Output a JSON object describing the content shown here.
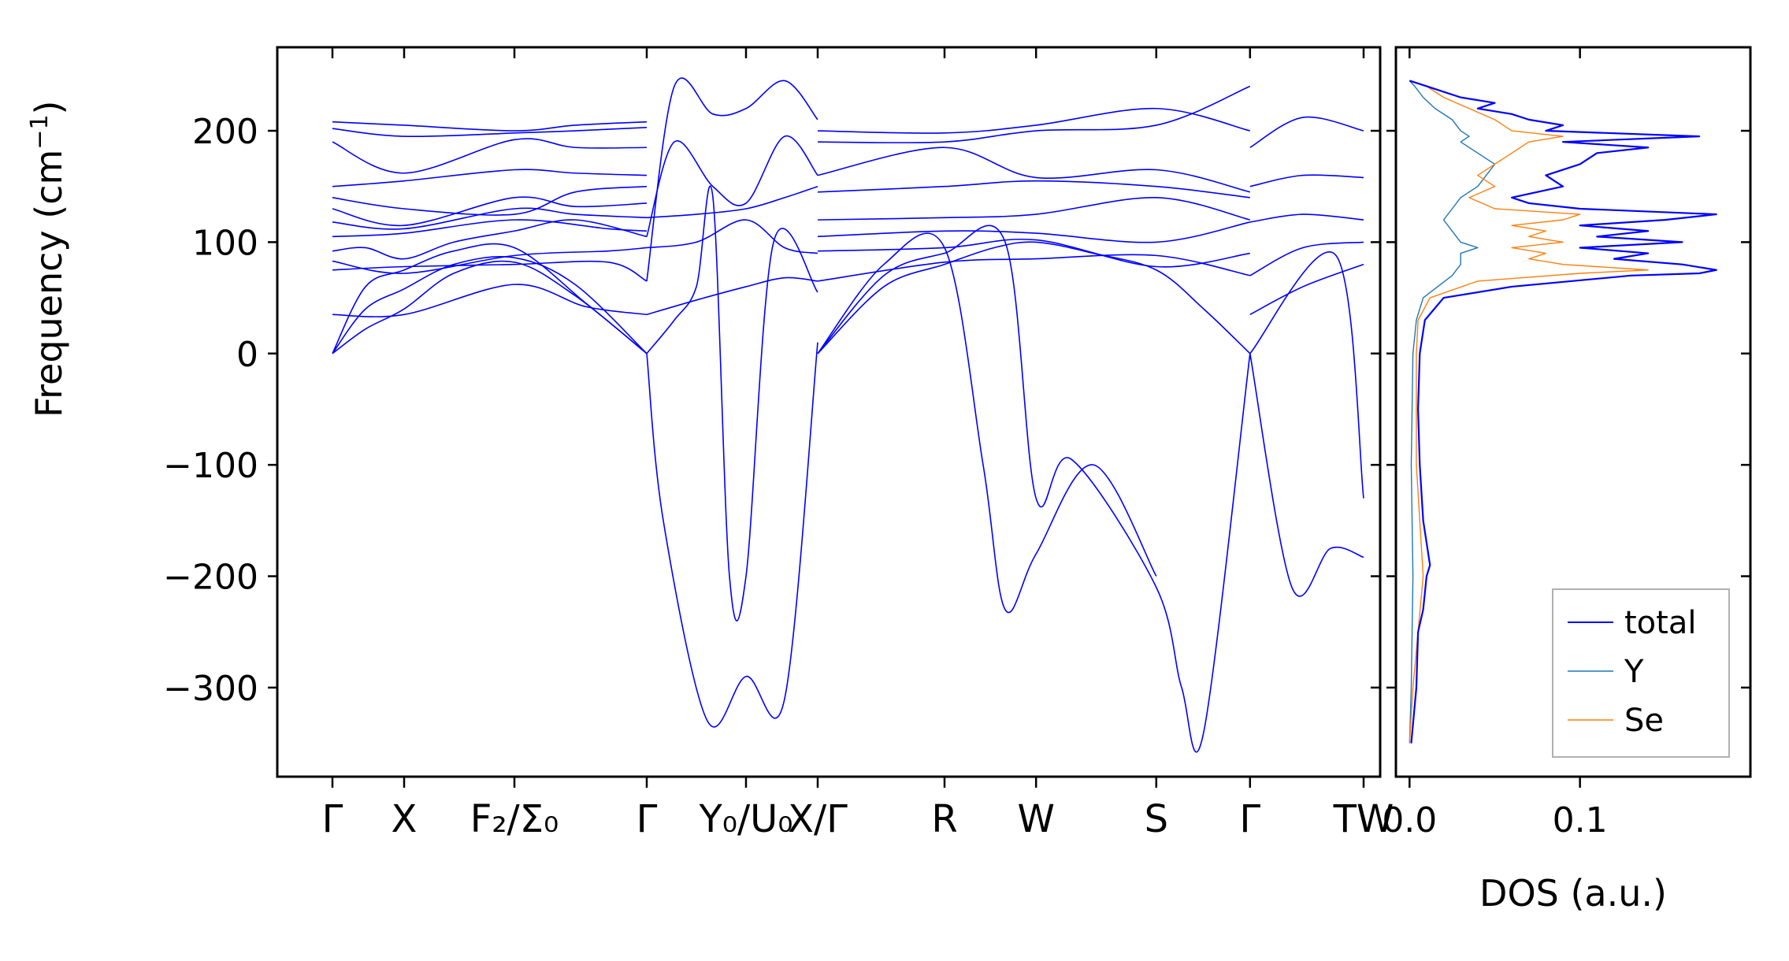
{
  "chart_data": [
    {
      "type": "line",
      "panel": "phonon-dispersion",
      "ylabel": "Frequency (cm$^{-1}$)",
      "ylabel_parts": {
        "main": "Frequency (cm",
        "sup": "−1",
        "close": ")"
      },
      "ylim": [
        -380,
        275
      ],
      "yticks": [
        -300,
        -200,
        -100,
        0,
        100,
        200
      ],
      "ytick_labels": [
        "−300",
        "−200",
        "−100",
        "0",
        "100",
        "200"
      ],
      "line_color": "#0000ff",
      "x_range": [
        0,
        1
      ],
      "high_symmetry_points": [
        {
          "x": 0.05,
          "label": "Γ"
        },
        {
          "x": 0.115,
          "label": "X"
        },
        {
          "x": 0.215,
          "label": "F₂/Σ₀"
        },
        {
          "x": 0.335,
          "label": "Γ"
        },
        {
          "x": 0.425,
          "label": "Y₀/U₀"
        },
        {
          "x": 0.49,
          "label": "X/Γ"
        },
        {
          "x": 0.605,
          "label": "R"
        },
        {
          "x": 0.688,
          "label": "W"
        },
        {
          "x": 0.797,
          "label": "S"
        },
        {
          "x": 0.882,
          "label": "Γ"
        },
        {
          "x": 0.985,
          "label": "TW"
        }
      ],
      "series": [
        {
          "x": [
            0.05,
            0.08,
            0.115,
            0.16,
            0.215,
            0.27,
            0.335
          ],
          "y": [
            0,
            22,
            40,
            72,
            82,
            52,
            0
          ]
        },
        {
          "x": [
            0.05,
            0.08,
            0.115,
            0.16,
            0.215,
            0.27,
            0.335
          ],
          "y": [
            0,
            40,
            58,
            80,
            86,
            62,
            0
          ]
        },
        {
          "x": [
            0.05,
            0.08,
            0.115,
            0.16,
            0.215,
            0.28,
            0.335
          ],
          "y": [
            0,
            60,
            75,
            92,
            95,
            45,
            0
          ]
        },
        {
          "x": [
            0.05,
            0.115,
            0.215,
            0.28,
            0.335
          ],
          "y": [
            35,
            35,
            62,
            42,
            35
          ]
        },
        {
          "x": [
            0.05,
            0.115,
            0.215,
            0.3,
            0.335
          ],
          "y": [
            75,
            78,
            80,
            82,
            65
          ]
        },
        {
          "x": [
            0.05,
            0.115,
            0.215,
            0.3,
            0.335
          ],
          "y": [
            83,
            72,
            88,
            92,
            95
          ]
        },
        {
          "x": [
            0.05,
            0.08,
            0.115,
            0.16,
            0.215,
            0.27,
            0.335
          ],
          "y": [
            92,
            95,
            85,
            100,
            110,
            120,
            105
          ]
        },
        {
          "x": [
            0.05,
            0.115,
            0.215,
            0.3,
            0.335
          ],
          "y": [
            105,
            108,
            120,
            112,
            110
          ]
        },
        {
          "x": [
            0.05,
            0.115,
            0.215,
            0.27,
            0.335
          ],
          "y": [
            118,
            112,
            130,
            125,
            122
          ]
        },
        {
          "x": [
            0.05,
            0.115,
            0.215,
            0.27,
            0.335
          ],
          "y": [
            130,
            115,
            140,
            132,
            135
          ]
        },
        {
          "x": [
            0.05,
            0.115,
            0.215,
            0.27,
            0.335
          ],
          "y": [
            140,
            130,
            125,
            145,
            150
          ]
        },
        {
          "x": [
            0.05,
            0.115,
            0.215,
            0.27,
            0.335
          ],
          "y": [
            150,
            155,
            165,
            162,
            160
          ]
        },
        {
          "x": [
            0.05,
            0.115,
            0.215,
            0.27,
            0.335
          ],
          "y": [
            190,
            162,
            192,
            185,
            185
          ]
        },
        {
          "x": [
            0.05,
            0.115,
            0.215,
            0.27,
            0.335
          ],
          "y": [
            202,
            195,
            198,
            200,
            203
          ]
        },
        {
          "x": [
            0.05,
            0.115,
            0.215,
            0.27,
            0.335
          ],
          "y": [
            208,
            205,
            200,
            205,
            208
          ]
        },
        {
          "x": [
            0.335,
            0.35,
            0.39,
            0.425,
            0.46,
            0.49
          ],
          "y": [
            0,
            -150,
            -330,
            -290,
            -310,
            10
          ]
        },
        {
          "x": [
            0.335,
            0.36,
            0.38,
            0.395,
            0.41,
            0.425,
            0.45,
            0.49
          ],
          "y": [
            0,
            30,
            60,
            140,
            -200,
            -200,
            100,
            55
          ]
        },
        {
          "x": [
            0.335,
            0.36,
            0.395,
            0.425,
            0.46,
            0.49
          ],
          "y": [
            65,
            240,
            215,
            220,
            245,
            210
          ]
        },
        {
          "x": [
            0.335,
            0.36,
            0.395,
            0.425,
            0.46,
            0.49
          ],
          "y": [
            105,
            190,
            150,
            135,
            195,
            160
          ]
        },
        {
          "x": [
            0.335,
            0.38,
            0.425,
            0.46,
            0.49
          ],
          "y": [
            35,
            48,
            60,
            68,
            65
          ]
        },
        {
          "x": [
            0.335,
            0.38,
            0.425,
            0.46,
            0.49
          ],
          "y": [
            95,
            100,
            120,
            95,
            90
          ]
        },
        {
          "x": [
            0.335,
            0.38,
            0.425,
            0.46,
            0.49
          ],
          "y": [
            122,
            125,
            130,
            140,
            150
          ]
        },
        {
          "x": [
            0.49,
            0.55,
            0.605,
            0.65,
            0.688,
            0.74,
            0.797,
            0.84,
            0.882
          ],
          "y": [
            0,
            60,
            80,
            95,
            100,
            90,
            75,
            40,
            0
          ]
        },
        {
          "x": [
            0.49,
            0.55,
            0.605,
            0.64,
            0.66,
            0.688,
            0.74,
            0.797
          ],
          "y": [
            0,
            80,
            95,
            -100,
            -230,
            -180,
            -100,
            -200
          ]
        },
        {
          "x": [
            0.49,
            0.55,
            0.605,
            0.66,
            0.688,
            0.72,
            0.797,
            0.82,
            0.84,
            0.882
          ],
          "y": [
            0,
            70,
            90,
            100,
            -130,
            -95,
            -210,
            -300,
            -340,
            0
          ]
        },
        {
          "x": [
            0.49,
            0.605,
            0.688,
            0.797,
            0.882
          ],
          "y": [
            65,
            82,
            85,
            88,
            70
          ]
        },
        {
          "x": [
            0.49,
            0.605,
            0.688,
            0.797,
            0.882
          ],
          "y": [
            92,
            95,
            102,
            78,
            90
          ]
        },
        {
          "x": [
            0.49,
            0.605,
            0.688,
            0.797,
            0.882
          ],
          "y": [
            105,
            110,
            108,
            100,
            118
          ]
        },
        {
          "x": [
            0.49,
            0.605,
            0.688,
            0.797,
            0.882
          ],
          "y": [
            120,
            122,
            125,
            140,
            120
          ]
        },
        {
          "x": [
            0.49,
            0.605,
            0.688,
            0.797,
            0.882
          ],
          "y": [
            145,
            150,
            155,
            150,
            140
          ]
        },
        {
          "x": [
            0.49,
            0.605,
            0.688,
            0.797,
            0.882
          ],
          "y": [
            160,
            185,
            158,
            165,
            145
          ]
        },
        {
          "x": [
            0.49,
            0.605,
            0.688,
            0.797,
            0.882
          ],
          "y": [
            190,
            190,
            200,
            205,
            240
          ]
        },
        {
          "x": [
            0.49,
            0.605,
            0.688,
            0.797,
            0.882
          ],
          "y": [
            200,
            198,
            205,
            220,
            200
          ]
        },
        {
          "x": [
            0.882,
            0.92,
            0.955,
            0.985
          ],
          "y": [
            0,
            -210,
            -175,
            -183
          ]
        },
        {
          "x": [
            0.882,
            0.96,
            0.985
          ],
          "y": [
            0,
            88,
            -130
          ]
        },
        {
          "x": [
            0.882,
            0.93,
            0.985
          ],
          "y": [
            35,
            60,
            80
          ]
        },
        {
          "x": [
            0.882,
            0.93,
            0.985
          ],
          "y": [
            70,
            95,
            100
          ]
        },
        {
          "x": [
            0.882,
            0.93,
            0.985
          ],
          "y": [
            118,
            125,
            120
          ]
        },
        {
          "x": [
            0.882,
            0.93,
            0.985
          ],
          "y": [
            150,
            160,
            158
          ]
        },
        {
          "x": [
            0.882,
            0.93,
            0.985
          ],
          "y": [
            185,
            212,
            200
          ]
        }
      ]
    },
    {
      "type": "line",
      "panel": "density-of-states",
      "xlabel": "DOS (a.u.)",
      "xlim": [
        -0.008,
        0.2
      ],
      "xticks": [
        0.0,
        0.1
      ],
      "xtick_labels": [
        "0.0",
        "0.1"
      ],
      "ylim": [
        -380,
        275
      ],
      "legend_position": "bottom-right",
      "series": [
        {
          "name": "total",
          "color": "#0000ff",
          "freq": [
            -350,
            -300,
            -250,
            -230,
            -200,
            -190,
            -150,
            -100,
            -50,
            0,
            30,
            50,
            60,
            70,
            72,
            75,
            80,
            85,
            90,
            95,
            100,
            105,
            110,
            115,
            120,
            125,
            130,
            135,
            140,
            150,
            160,
            170,
            180,
            185,
            190,
            195,
            200,
            205,
            210,
            215,
            220,
            225,
            230,
            235,
            240,
            245
          ],
          "dos": [
            0.001,
            0.004,
            0.005,
            0.008,
            0.01,
            0.012,
            0.008,
            0.006,
            0.005,
            0.006,
            0.009,
            0.02,
            0.06,
            0.13,
            0.17,
            0.18,
            0.16,
            0.12,
            0.14,
            0.1,
            0.16,
            0.11,
            0.14,
            0.1,
            0.15,
            0.18,
            0.1,
            0.07,
            0.06,
            0.09,
            0.08,
            0.1,
            0.11,
            0.14,
            0.09,
            0.17,
            0.08,
            0.09,
            0.07,
            0.06,
            0.04,
            0.05,
            0.03,
            0.02,
            0.01,
            0.0
          ]
        },
        {
          "name": "Y",
          "color": "#1f77b4",
          "freq": [
            -350,
            -300,
            -200,
            -100,
            0,
            30,
            50,
            70,
            80,
            90,
            95,
            100,
            110,
            120,
            130,
            140,
            150,
            160,
            170,
            180,
            190,
            195,
            200,
            210,
            220,
            230,
            240,
            245
          ],
          "dos": [
            0.0,
            0.001,
            0.002,
            0.001,
            0.002,
            0.004,
            0.008,
            0.025,
            0.03,
            0.03,
            0.04,
            0.03,
            0.025,
            0.02,
            0.025,
            0.03,
            0.04,
            0.045,
            0.05,
            0.04,
            0.03,
            0.035,
            0.03,
            0.025,
            0.015,
            0.008,
            0.003,
            0.0
          ]
        },
        {
          "name": "Se",
          "color": "#ff7f0e",
          "freq": [
            -350,
            -300,
            -200,
            -100,
            0,
            30,
            50,
            65,
            72,
            75,
            80,
            85,
            90,
            95,
            100,
            105,
            110,
            115,
            120,
            125,
            130,
            140,
            150,
            160,
            170,
            180,
            190,
            195,
            200,
            210,
            220,
            230,
            240,
            245
          ],
          "dos": [
            0.0,
            0.002,
            0.008,
            0.004,
            0.004,
            0.005,
            0.012,
            0.04,
            0.1,
            0.14,
            0.09,
            0.07,
            0.08,
            0.06,
            0.09,
            0.07,
            0.08,
            0.06,
            0.09,
            0.1,
            0.05,
            0.035,
            0.05,
            0.04,
            0.05,
            0.06,
            0.07,
            0.09,
            0.06,
            0.05,
            0.035,
            0.02,
            0.01,
            0.0
          ]
        }
      ]
    }
  ]
}
